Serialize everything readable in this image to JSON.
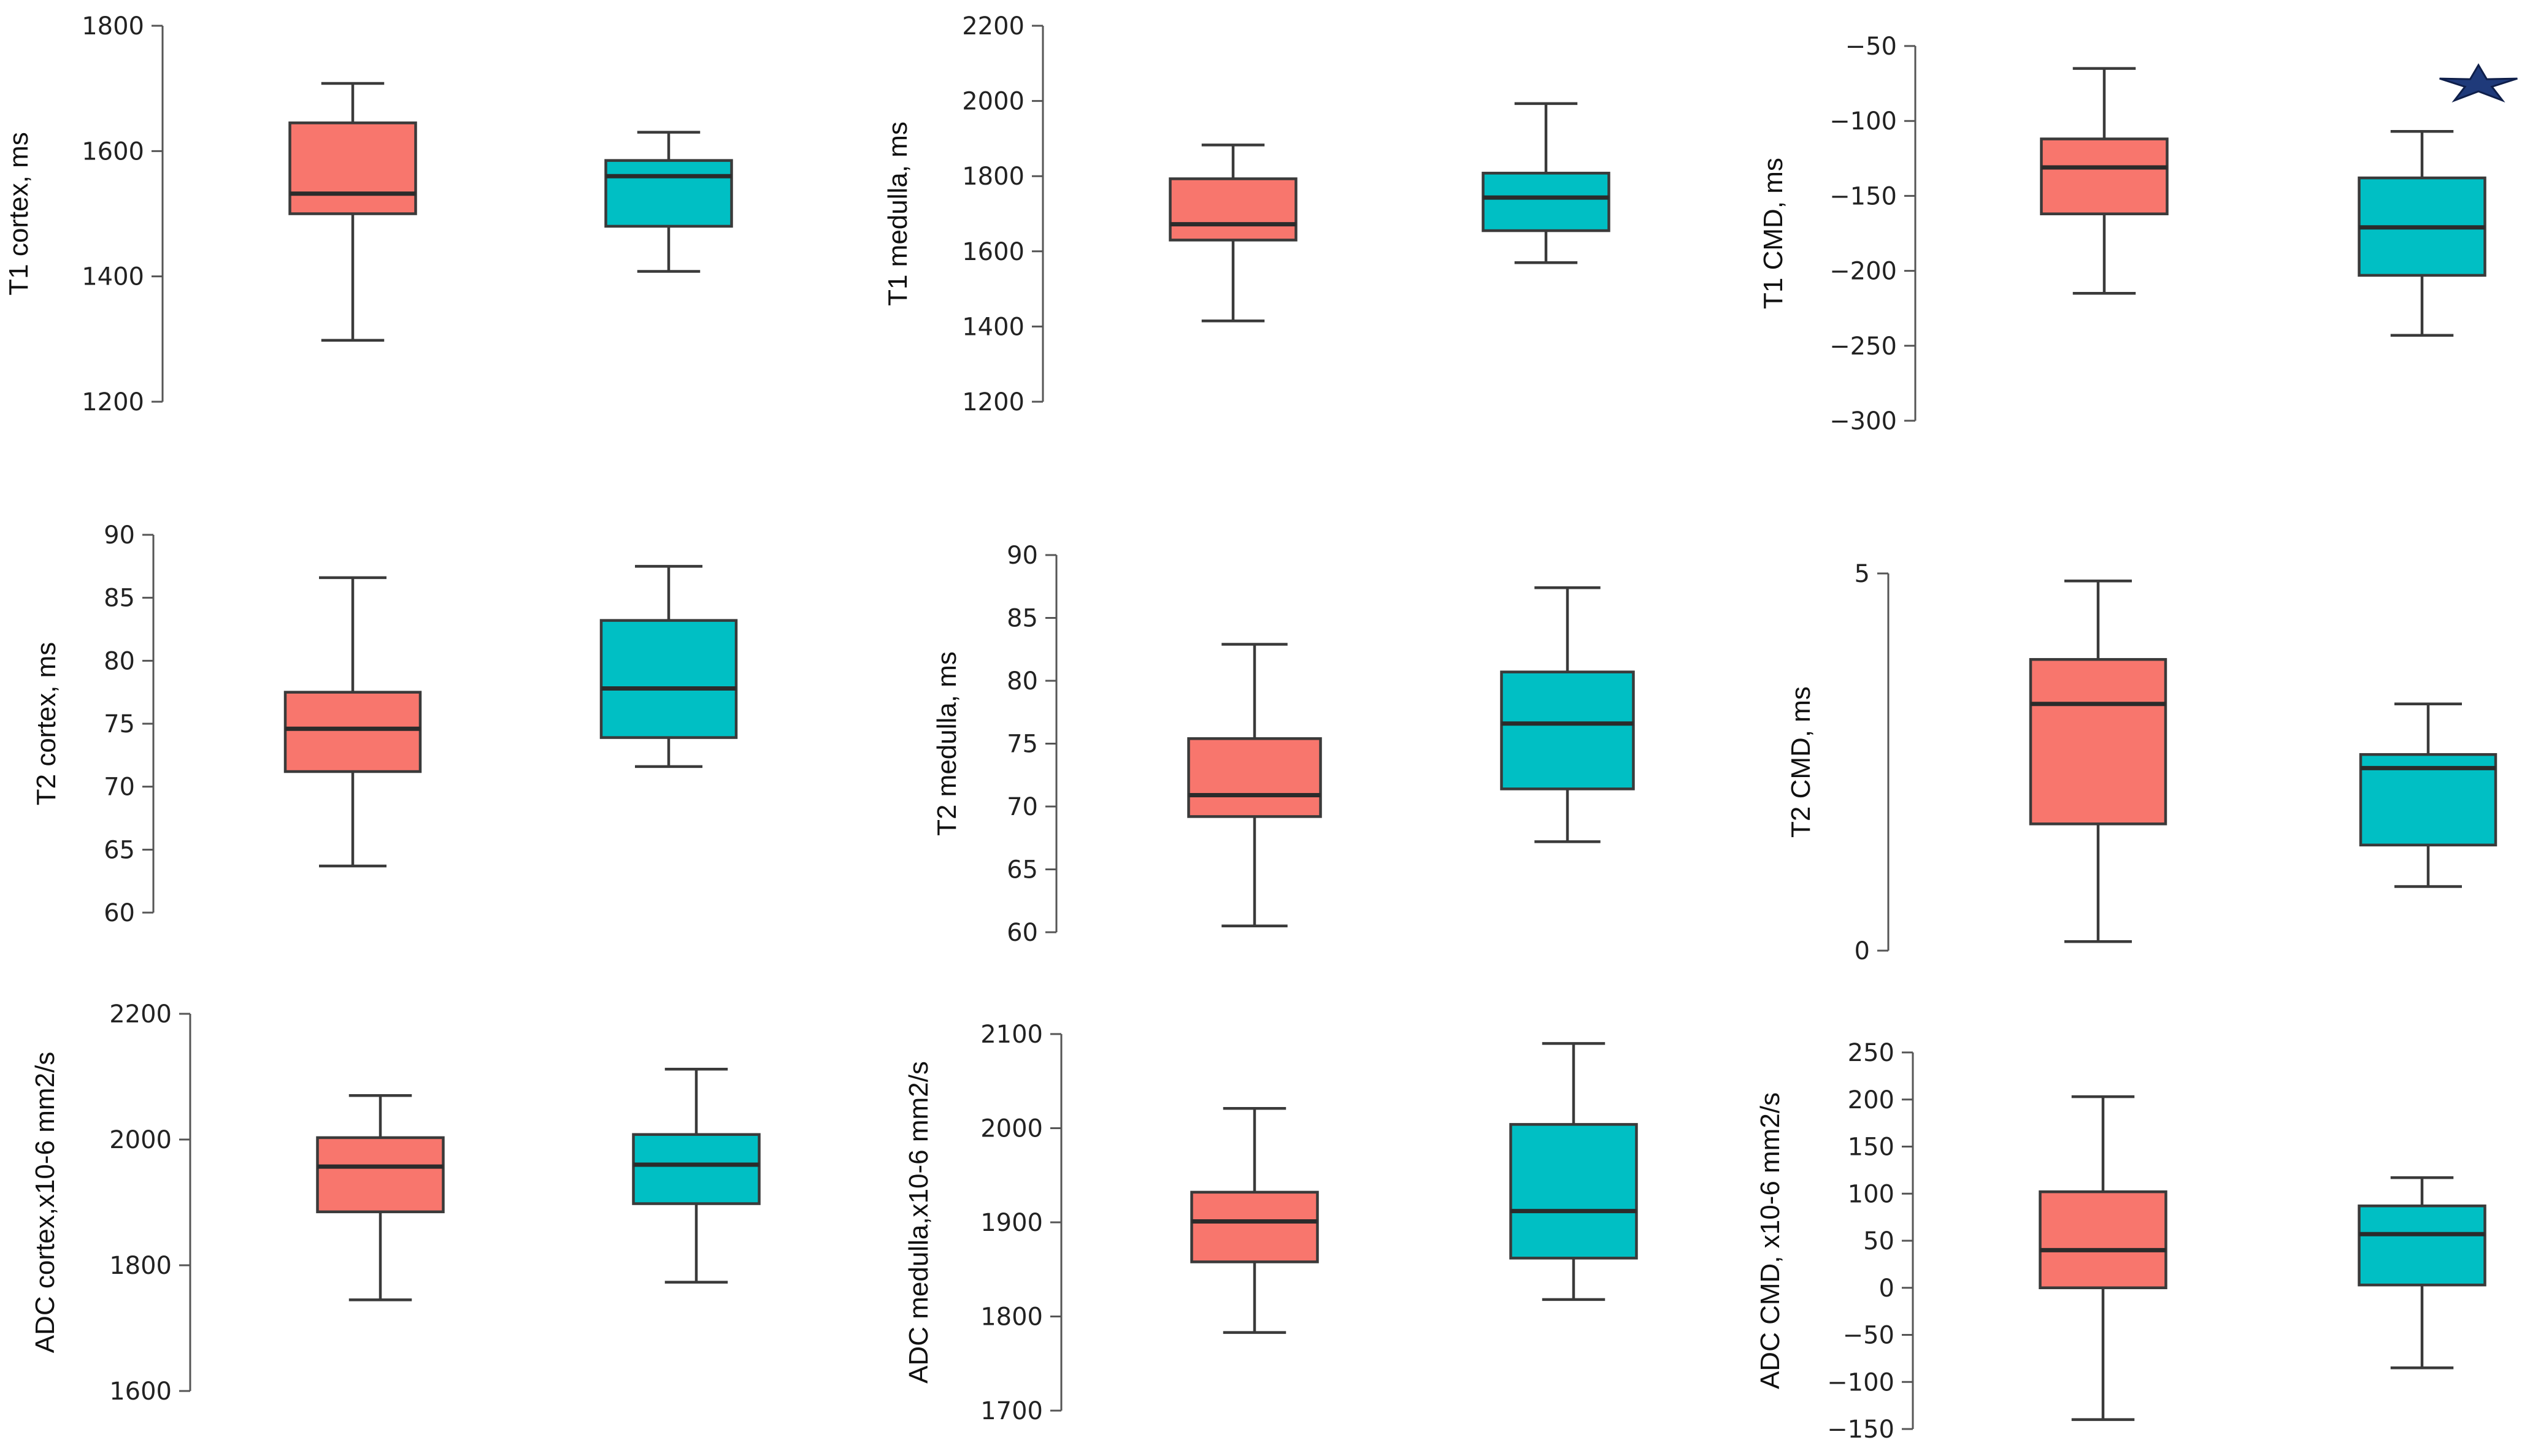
{
  "colors": {
    "group_a": "#F8766D",
    "group_b": "#00BFC4",
    "star": "#1F3A7A"
  },
  "chart_data": [
    {
      "type": "box",
      "ylabel": "T1 cortex, ms",
      "yticks": [
        1200,
        1400,
        1600,
        1800
      ],
      "ylim": [
        1200,
        1800
      ],
      "boxes": [
        {
          "group": "group_a",
          "min": 1298,
          "q1": 1500,
          "median": 1532,
          "q3": 1645,
          "max": 1708
        },
        {
          "group": "group_b",
          "min": 1408,
          "q1": 1480,
          "median": 1560,
          "q3": 1585,
          "max": 1630
        }
      ],
      "annotation": ""
    },
    {
      "type": "box",
      "ylabel": "T1 medulla, ms",
      "yticks": [
        1200,
        1400,
        1600,
        1800,
        2000,
        2200
      ],
      "ylim": [
        1200,
        2200
      ],
      "boxes": [
        {
          "group": "group_a",
          "min": 1415,
          "q1": 1630,
          "median": 1672,
          "q3": 1793,
          "max": 1883
        },
        {
          "group": "group_b",
          "min": 1570,
          "q1": 1655,
          "median": 1743,
          "q3": 1808,
          "max": 1993
        }
      ],
      "annotation": ""
    },
    {
      "type": "box",
      "ylabel": "T1 CMD, ms",
      "yticks": [
        -300,
        -250,
        -200,
        -150,
        -100,
        -50
      ],
      "ylim": [
        -300,
        -50
      ],
      "boxes": [
        {
          "group": "group_a",
          "min": -215,
          "q1": -162,
          "median": -131,
          "q3": -112,
          "max": -65
        },
        {
          "group": "group_b",
          "min": -243,
          "q1": -203,
          "median": -171,
          "q3": -138,
          "max": -107
        }
      ],
      "annotation": "star"
    },
    {
      "type": "box",
      "ylabel": "T2 cortex, ms",
      "yticks": [
        60,
        65,
        70,
        75,
        80,
        85,
        90
      ],
      "ylim": [
        60,
        90
      ],
      "boxes": [
        {
          "group": "group_a",
          "min": 63.7,
          "q1": 71.2,
          "median": 74.6,
          "q3": 77.5,
          "max": 86.6
        },
        {
          "group": "group_b",
          "min": 71.6,
          "q1": 73.9,
          "median": 77.8,
          "q3": 83.2,
          "max": 87.5
        }
      ],
      "annotation": ""
    },
    {
      "type": "box",
      "ylabel": "T2 medulla, ms",
      "yticks": [
        60,
        65,
        70,
        75,
        80,
        85,
        90
      ],
      "ylim": [
        60,
        90
      ],
      "boxes": [
        {
          "group": "group_a",
          "min": 60.5,
          "q1": 69.2,
          "median": 70.9,
          "q3": 75.4,
          "max": 82.9
        },
        {
          "group": "group_b",
          "min": 67.2,
          "q1": 71.4,
          "median": 76.6,
          "q3": 80.7,
          "max": 87.4
        }
      ],
      "annotation": ""
    },
    {
      "type": "box",
      "ylabel": "T2 CMD, ms",
      "yticks": [
        0,
        5
      ],
      "ylim": [
        0,
        5
      ],
      "boxes": [
        {
          "group": "group_a",
          "min": 0.12,
          "q1": 1.68,
          "median": 3.27,
          "q3": 3.86,
          "max": 4.9
        },
        {
          "group": "group_b",
          "min": 0.85,
          "q1": 1.4,
          "median": 2.42,
          "q3": 2.6,
          "max": 3.27
        }
      ],
      "annotation": ""
    },
    {
      "type": "box",
      "ylabel": "ADC cortex,x10-6 mm2/s",
      "yticks": [
        1600,
        1800,
        2000,
        2200
      ],
      "ylim": [
        1600,
        2200
      ],
      "boxes": [
        {
          "group": "group_a",
          "min": 1745,
          "q1": 1885,
          "median": 1957,
          "q3": 2003,
          "max": 2070
        },
        {
          "group": "group_b",
          "min": 1773,
          "q1": 1898,
          "median": 1960,
          "q3": 2008,
          "max": 2112
        }
      ],
      "annotation": ""
    },
    {
      "type": "box",
      "ylabel": "ADC medulla,x10-6 mm2/s",
      "yticks": [
        1700,
        1800,
        1900,
        2000,
        2100
      ],
      "ylim": [
        1700,
        2100
      ],
      "boxes": [
        {
          "group": "group_a",
          "min": 1783,
          "q1": 1858,
          "median": 1901,
          "q3": 1932,
          "max": 2021
        },
        {
          "group": "group_b",
          "min": 1818,
          "q1": 1862,
          "median": 1912,
          "q3": 2004,
          "max": 2090
        }
      ],
      "annotation": ""
    },
    {
      "type": "box",
      "ylabel": "ADC CMD, x10-6 mm2/s",
      "yticks": [
        -150,
        -100,
        -50,
        0,
        50,
        100,
        150,
        200,
        250
      ],
      "ylim": [
        -150,
        250
      ],
      "boxes": [
        {
          "group": "group_a",
          "min": -140,
          "q1": 0,
          "median": 40,
          "q3": 102,
          "max": 203
        },
        {
          "group": "group_b",
          "min": -85,
          "q1": 3,
          "median": 57,
          "q3": 87,
          "max": 117
        }
      ],
      "annotation": ""
    }
  ]
}
